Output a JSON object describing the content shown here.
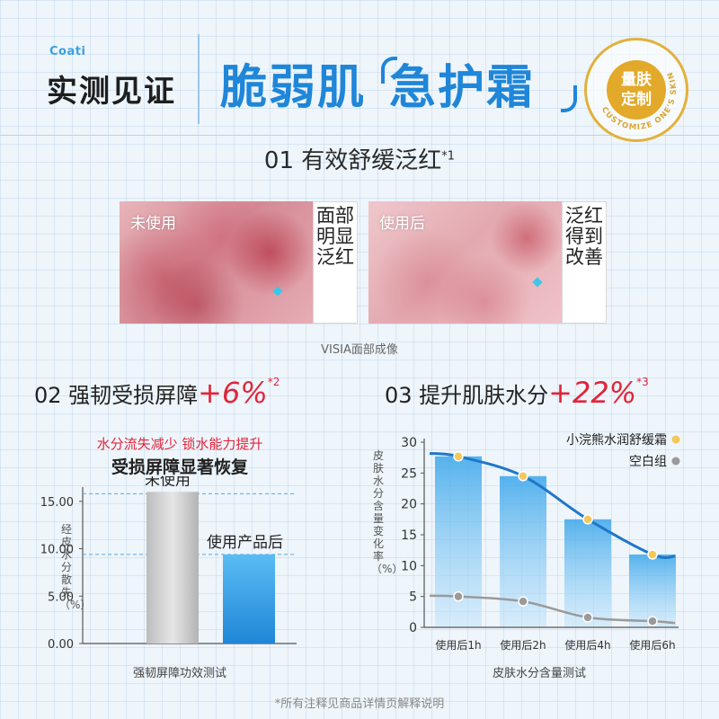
{
  "header": {
    "logo": "Coati",
    "left_title": "实测见证",
    "main_title_a": "脆弱肌",
    "main_title_b": "急护霜",
    "badge_text_line1": "量肤",
    "badge_text_line2": "定制",
    "badge_ring_text": "CUSTOMIZE ONE'S SKIN"
  },
  "section1": {
    "title": "01 有效舒缓泛红",
    "title_sup": "*1",
    "before_label": "未使用",
    "before_side": "面部明显泛红",
    "after_label": "使用后",
    "after_side": "泛红得到改善",
    "caption": "VISIA面部成像"
  },
  "section2": {
    "title_prefix": "02 强韧受损屏障",
    "highlight": "+6%",
    "highlight_sup": "*2",
    "red_text": "水分流失减少 锁水能力提升",
    "subtitle": "受损屏障显著恢复",
    "ylabel": "经皮水分散失（%）",
    "footer": "强韧屏障功效测试"
  },
  "section3": {
    "title_prefix": "03 提升肌肤水分",
    "highlight": "+22%",
    "highlight_sup": "*3",
    "ylabel": "皮肤水分含量变化率（%）",
    "footer": "皮肤水分含量测试"
  },
  "footnote": "*所有注释见商品详情页解释说明",
  "colors": {
    "accent": "#1f86d8",
    "highlight": "#e0243a",
    "gold": "#e2b13c"
  },
  "chart_data": [
    {
      "type": "bar",
      "categories": [
        "未使用",
        "使用产品后"
      ],
      "values": [
        16.0,
        9.4
      ],
      "yticks": [
        "0.00",
        "5.00",
        "10.00",
        "15.00"
      ],
      "ylim": [
        0,
        16.5
      ],
      "ylabel": "经皮水分散失（%）",
      "xlabel": "",
      "reference_lines": [
        15.8,
        9.4
      ]
    },
    {
      "type": "line",
      "categories": [
        "使用后1h",
        "使用后2h",
        "使用后4h",
        "使用后6h"
      ],
      "series": [
        {
          "name": "小浣熊水润舒缓霜",
          "values": [
            27.7,
            24.5,
            17.5,
            11.8
          ],
          "color": "#f2c75c"
        },
        {
          "name": "空白组",
          "values": [
            5.0,
            4.2,
            1.6,
            1.0
          ],
          "color": "#9a9a9a"
        }
      ],
      "yticks": [
        0,
        5,
        10,
        15,
        20,
        25,
        30
      ],
      "ylim": [
        0,
        30
      ],
      "ylabel": "皮肤水分含量变化率（%）",
      "xlabel": ""
    }
  ]
}
